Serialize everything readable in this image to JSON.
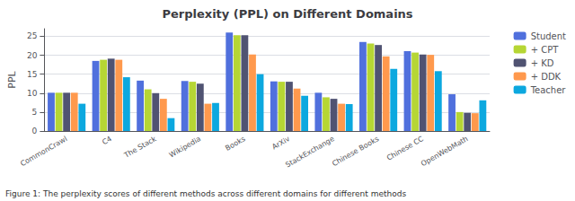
{
  "chart_data": {
    "type": "bar",
    "title": "Perplexity (PPL) on Different Domains",
    "ylabel": "PPL",
    "caption": "Figure 1: The perplexity scores of different methods across different domains for different methods",
    "categories": [
      "CommonCrawl",
      "C4",
      "The Stack",
      "Wikipedia",
      "Books",
      "ArXiv",
      "StackExchange",
      "Chinese Books",
      "Chinese CC",
      "OpenWebMath"
    ],
    "series": [
      {
        "name": "Student",
        "values": [
          10.1,
          18.5,
          13.3,
          13.2,
          26.0,
          13.1,
          10.1,
          23.5,
          21.1,
          9.7
        ]
      },
      {
        "name": "+ CPT",
        "values": [
          10.1,
          18.8,
          11.0,
          13.0,
          25.3,
          13.0,
          8.9,
          23.1,
          20.7,
          5.0
        ]
      },
      {
        "name": "+ KD",
        "values": [
          10.1,
          19.1,
          10.0,
          12.5,
          25.3,
          13.0,
          8.5,
          22.7,
          20.2,
          4.8
        ]
      },
      {
        "name": "+ DDK",
        "values": [
          10.1,
          18.8,
          8.5,
          7.2,
          20.2,
          11.2,
          7.2,
          19.7,
          20.1,
          4.7
        ]
      },
      {
        "name": "Teacher",
        "values": [
          7.2,
          14.2,
          3.4,
          7.4,
          15.0,
          9.3,
          7.1,
          16.4,
          15.8,
          8.1
        ]
      }
    ],
    "ylim": [
      0,
      27
    ],
    "yticks": [
      0,
      5,
      10,
      15,
      20,
      25
    ],
    "grid": true,
    "legend": "upper right"
  }
}
